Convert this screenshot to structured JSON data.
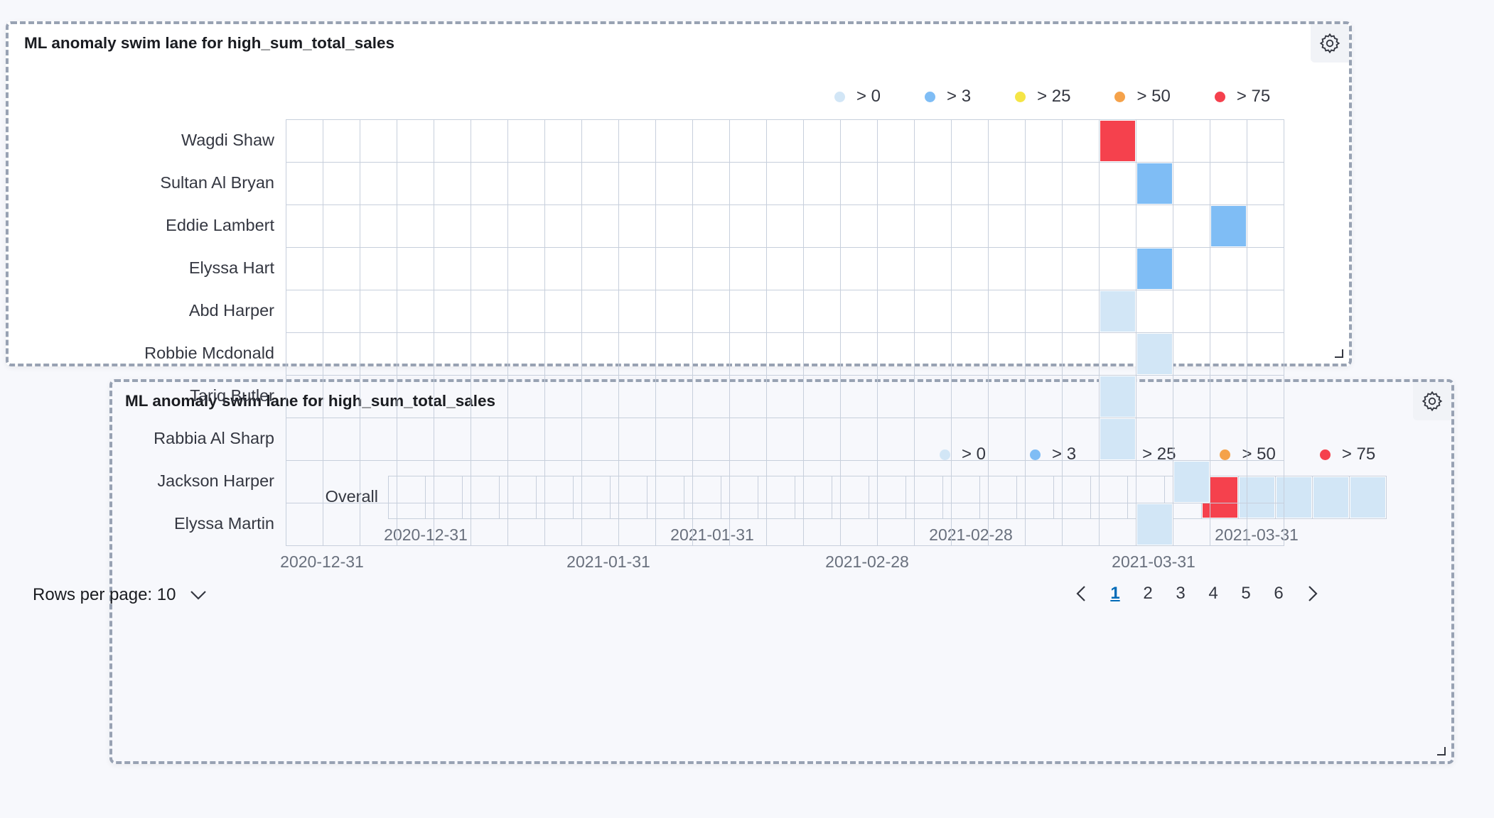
{
  "panels": [
    {
      "title": "ML anomaly swim lane for high_sum_total_sales",
      "settings_icon": "gear-icon"
    },
    {
      "title": "ML anomaly swim lane for high_sum_total_sales",
      "settings_icon": "gear-icon"
    }
  ],
  "legend": [
    {
      "label": "> 0",
      "color": "#d2e6f6"
    },
    {
      "label": "> 3",
      "color": "#7fbdf5"
    },
    {
      "label": "> 25",
      "color": "#f5e546"
    },
    {
      "label": "> 50",
      "color": "#f5a24a"
    },
    {
      "label": "> 75",
      "color": "#f5414d"
    }
  ],
  "swimlane_a": {
    "lanes": [
      "Wagdi Shaw",
      "Sultan Al Bryan",
      "Eddie Lambert",
      "Elyssa Hart",
      "Abd Harper",
      "Robbie Mcdonald",
      "Tariq Butler",
      "Rabbia Al Sharp",
      "Jackson Harper",
      "Elyssa Martin"
    ],
    "x_ticks": [
      "2020-12-31",
      "2021-01-31",
      "2021-02-28",
      "2021-03-31"
    ],
    "column_count": 27,
    "anomalies": [
      {
        "lane": 0,
        "column": 22,
        "severity": "> 75"
      },
      {
        "lane": 1,
        "column": 23,
        "severity": "> 3"
      },
      {
        "lane": 2,
        "column": 25,
        "severity": "> 3"
      },
      {
        "lane": 3,
        "column": 23,
        "severity": "> 3"
      },
      {
        "lane": 4,
        "column": 22,
        "severity": "> 0"
      },
      {
        "lane": 5,
        "column": 23,
        "severity": "> 0"
      },
      {
        "lane": 6,
        "column": 22,
        "severity": "> 0"
      },
      {
        "lane": 7,
        "column": 22,
        "severity": "> 0"
      },
      {
        "lane": 8,
        "column": 24,
        "severity": "> 0"
      },
      {
        "lane": 9,
        "column": 23,
        "severity": "> 0"
      }
    ]
  },
  "swimlane_b": {
    "lanes": [
      "Overall"
    ],
    "x_ticks": [
      "2020-12-31",
      "2021-01-31",
      "2021-02-28",
      "2021-03-31"
    ],
    "column_count": 27,
    "anomalies": [
      {
        "lane": 0,
        "column": 22,
        "severity": "> 75"
      },
      {
        "lane": 0,
        "column": 23,
        "severity": "> 0"
      },
      {
        "lane": 0,
        "column": 24,
        "severity": "> 0"
      },
      {
        "lane": 0,
        "column": 25,
        "severity": "> 0"
      },
      {
        "lane": 0,
        "column": 26,
        "severity": "> 0"
      }
    ]
  },
  "pagination": {
    "rows_per_page_label": "Rows per page: 10",
    "pages": [
      "1",
      "2",
      "3",
      "4",
      "5",
      "6"
    ],
    "active_page": "1"
  },
  "colors": {
    "grid_line": "#c7cfdc",
    "empty_cell": "#ffffff",
    "link_active": "#006bb8"
  }
}
